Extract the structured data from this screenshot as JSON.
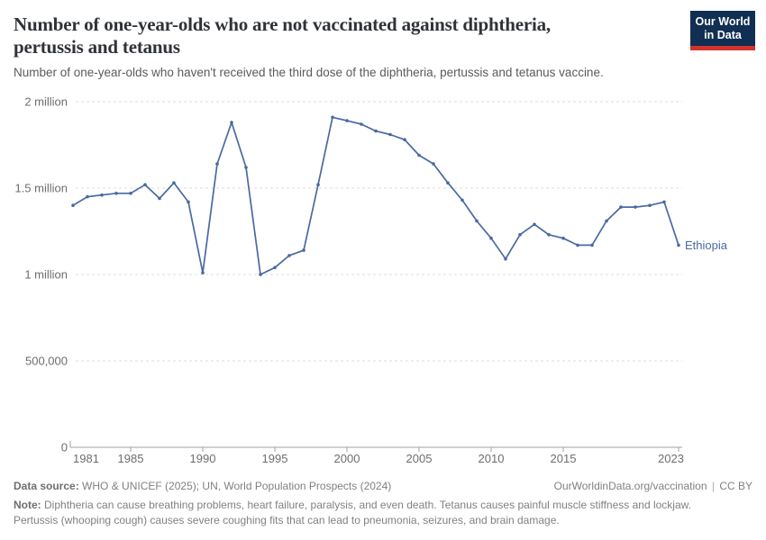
{
  "header": {
    "title_lines": [
      "Number of one-year-olds who are not vaccinated against diphtheria,",
      "pertussis and tetanus"
    ],
    "subtitle": "Number of one-year-olds who haven't received the third dose of the diphtheria, pertussis and tetanus vaccine.",
    "logo": {
      "line1": "Our World",
      "line2": "in Data",
      "bg_color": "#102f52",
      "accent_color": "#d0342c"
    }
  },
  "chart_data": {
    "type": "line",
    "title": "Number of one-year-olds who are not vaccinated against diphtheria, pertussis and tetanus",
    "subtitle": "Number of one-year-olds who haven't received the third dose of the diphtheria, pertussis and tetanus vaccine.",
    "xlabel": "",
    "ylabel": "",
    "grid": true,
    "legend_position": "end-of-line",
    "ylim": [
      0,
      2000000
    ],
    "xlim": [
      1981,
      2023
    ],
    "yticks": {
      "values": [
        0,
        500000,
        1000000,
        1500000,
        2000000
      ],
      "labels": [
        "0",
        "500,000",
        "1 million",
        "1.5 million",
        "2 million"
      ]
    },
    "xticks": [
      1981,
      1985,
      1990,
      1995,
      2000,
      2005,
      2010,
      2015,
      2023
    ],
    "x": [
      1981,
      1982,
      1983,
      1984,
      1985,
      1986,
      1987,
      1988,
      1989,
      1990,
      1991,
      1992,
      1993,
      1994,
      1995,
      1996,
      1997,
      1998,
      1999,
      2000,
      2001,
      2002,
      2003,
      2004,
      2005,
      2006,
      2007,
      2008,
      2009,
      2010,
      2011,
      2012,
      2013,
      2014,
      2015,
      2016,
      2017,
      2018,
      2019,
      2020,
      2021,
      2022,
      2023
    ],
    "series": [
      {
        "name": "Ethiopia",
        "color": "#4a69a2",
        "values": [
          1400000,
          1450000,
          1460000,
          1470000,
          1470000,
          1520000,
          1440000,
          1530000,
          1420000,
          1010000,
          1640000,
          1880000,
          1620000,
          1000000,
          1040000,
          1110000,
          1140000,
          1520000,
          1910000,
          1890000,
          1870000,
          1830000,
          1810000,
          1780000,
          1690000,
          1640000,
          1530000,
          1430000,
          1310000,
          1210000,
          1090000,
          1230000,
          1290000,
          1230000,
          1210000,
          1170000,
          1170000,
          1310000,
          1390000,
          1390000,
          1400000,
          1420000,
          1170000
        ]
      }
    ],
    "axis_color": "#a0a0a0",
    "gridline_color": "#dcdcdc",
    "tick_label_color": "#6d6d6d"
  },
  "footer": {
    "datasource_label": "Data source:",
    "datasource": "WHO & UNICEF (2025); UN, World Population Prospects (2024)",
    "link": "OurWorldinData.org/vaccination",
    "separator": "|",
    "license": "CC BY",
    "note_label": "Note:",
    "note": "Diphtheria can cause breathing problems, heart failure, paralysis, and even death. Tetanus causes painful muscle stiffness and lockjaw. Pertussis (whooping cough) causes severe coughing fits that can lead to pneumonia, seizures, and brain damage."
  }
}
